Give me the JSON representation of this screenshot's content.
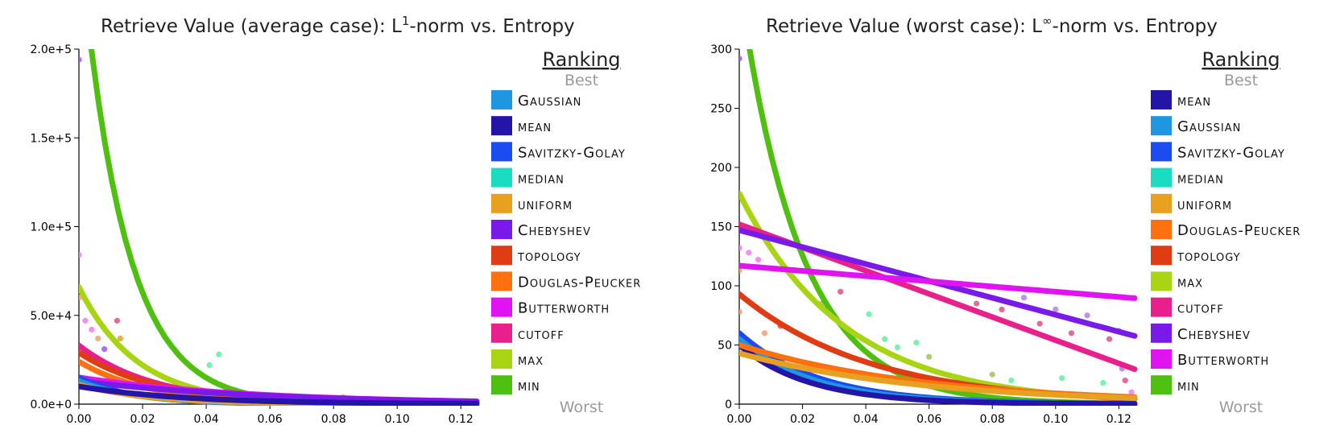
{
  "chart_data": [
    {
      "type": "line",
      "title_main": "Retrieve Value (average case): L",
      "title_sup": "1",
      "title_rest": "-norm vs. Entropy",
      "xlim": [
        0,
        0.125
      ],
      "ylim": [
        0,
        200000
      ],
      "xticks": [
        0,
        0.02,
        0.04,
        0.06,
        0.08,
        0.1,
        0.12
      ],
      "xtick_labels": [
        "0.00",
        "0.02",
        "0.04",
        "0.06",
        "0.08",
        "0.10",
        "0.12"
      ],
      "yticks": [
        0,
        50000,
        100000,
        150000,
        200000
      ],
      "ytick_labels": [
        "0.0e+0",
        "5.0e+4",
        "1.0e+5",
        "1.5e+5",
        "2.0e+5"
      ],
      "legend": {
        "title": "Ranking",
        "best_label": "Best",
        "worst_label": "Worst",
        "items": [
          {
            "label": "Gaussian",
            "color": "#1f96e0"
          },
          {
            "label": "mean",
            "color": "#2414a8"
          },
          {
            "label": "Savitzky-Golay",
            "color": "#1a4cf0"
          },
          {
            "label": "median",
            "color": "#1adcc0"
          },
          {
            "label": "uniform",
            "color": "#e8a020"
          },
          {
            "label": "Chebyshev",
            "color": "#7a1ae8"
          },
          {
            "label": "topology",
            "color": "#e03c14"
          },
          {
            "label": "Douglas-Peucker",
            "color": "#ff7010"
          },
          {
            "label": "Butterworth",
            "color": "#e014f0"
          },
          {
            "label": "cutoff",
            "color": "#e8208c"
          },
          {
            "label": "max",
            "color": "#a8d414"
          },
          {
            "label": "min",
            "color": "#50c010"
          }
        ]
      },
      "series": [
        {
          "name": "min",
          "color": "#50c010",
          "kind": "exp",
          "a": 265000,
          "k": 72,
          "xmin": 0.0,
          "xmax": 0.125
        },
        {
          "name": "max",
          "color": "#a8d414",
          "kind": "exp",
          "a": 66000,
          "k": 55,
          "xmin": 0.0,
          "xmax": 0.125
        },
        {
          "name": "cutoff",
          "color": "#e8208c",
          "kind": "exp",
          "a": 33000,
          "k": 42,
          "xmin": 0.0,
          "xmax": 0.125
        },
        {
          "name": "topology",
          "color": "#e03c14",
          "kind": "exp",
          "a": 29000,
          "k": 40,
          "xmin": 0.0,
          "xmax": 0.125
        },
        {
          "name": "Douglas-Peucker",
          "color": "#ff7010",
          "kind": "exp",
          "a": 24000,
          "k": 45,
          "xmin": 0.0,
          "xmax": 0.125
        },
        {
          "name": "Butterworth",
          "color": "#e014f0",
          "kind": "exp",
          "a": 15000,
          "k": 18,
          "xmin": 0.0,
          "xmax": 0.125
        },
        {
          "name": "Chebyshev",
          "color": "#7a1ae8",
          "kind": "exp",
          "a": 13000,
          "k": 17,
          "xmin": 0.0,
          "xmax": 0.125
        },
        {
          "name": "Savitzky-Golay",
          "color": "#1a4cf0",
          "kind": "exp",
          "a": 15000,
          "k": 60,
          "xmin": 0.0,
          "xmax": 0.125
        },
        {
          "name": "Gaussian",
          "color": "#1f96e0",
          "kind": "exp",
          "a": 13000,
          "k": 55,
          "xmin": 0.0,
          "xmax": 0.125
        },
        {
          "name": "uniform",
          "color": "#e8a020",
          "kind": "exp",
          "a": 11000,
          "k": 45,
          "xmin": 0.0,
          "xmax": 0.125
        },
        {
          "name": "mean",
          "color": "#2414a8",
          "kind": "exp",
          "a": 10000,
          "k": 30,
          "xmin": 0.0,
          "xmax": 0.125
        }
      ],
      "points": [
        {
          "x": 0.0,
          "y": 194000,
          "color": "#9b59f0"
        },
        {
          "x": 0.0,
          "y": 84000,
          "color": "#f07cf0"
        },
        {
          "x": 0.0,
          "y": 60000,
          "color": "#f0a070"
        },
        {
          "x": 0.002,
          "y": 47000,
          "color": "#f07cf0"
        },
        {
          "x": 0.004,
          "y": 42000,
          "color": "#f07cf0"
        },
        {
          "x": 0.006,
          "y": 37000,
          "color": "#f0a070"
        },
        {
          "x": 0.012,
          "y": 47000,
          "color": "#e05080"
        },
        {
          "x": 0.013,
          "y": 37000,
          "color": "#e8a020"
        },
        {
          "x": 0.008,
          "y": 31000,
          "color": "#9b59f0"
        },
        {
          "x": 0.044,
          "y": 28000,
          "color": "#60f0a0"
        },
        {
          "x": 0.041,
          "y": 22000,
          "color": "#60f0a0"
        },
        {
          "x": 0.083,
          "y": 4000,
          "color": "#f0a070"
        },
        {
          "x": 0.124,
          "y": 1000,
          "color": "#f07cf0"
        }
      ]
    },
    {
      "type": "line",
      "title_main": "Retrieve Value (worst case): L",
      "title_sup": "∞",
      "title_rest": "-norm vs. Entropy",
      "xlim": [
        0,
        0.125
      ],
      "ylim": [
        0,
        300
      ],
      "xticks": [
        0,
        0.02,
        0.04,
        0.06,
        0.08,
        0.1,
        0.12
      ],
      "xtick_labels": [
        "0.00",
        "0.02",
        "0.04",
        "0.06",
        "0.08",
        "0.10",
        "0.12"
      ],
      "yticks": [
        0,
        50,
        100,
        150,
        200,
        250,
        300
      ],
      "ytick_labels": [
        "0",
        "50",
        "100",
        "150",
        "200",
        "250",
        "300"
      ],
      "legend": {
        "title": "Ranking",
        "best_label": "Best",
        "worst_label": "Worst",
        "items": [
          {
            "label": "mean",
            "color": "#2414a8"
          },
          {
            "label": "Gaussian",
            "color": "#1f96e0"
          },
          {
            "label": "Savitzky-Golay",
            "color": "#1a4cf0"
          },
          {
            "label": "median",
            "color": "#1adcc0"
          },
          {
            "label": "uniform",
            "color": "#e8a020"
          },
          {
            "label": "Douglas-Peucker",
            "color": "#ff7010"
          },
          {
            "label": "topology",
            "color": "#e03c14"
          },
          {
            "label": "max",
            "color": "#a8d414"
          },
          {
            "label": "cutoff",
            "color": "#e8208c"
          },
          {
            "label": "Chebyshev",
            "color": "#7a1ae8"
          },
          {
            "label": "Butterworth",
            "color": "#e014f0"
          },
          {
            "label": "min",
            "color": "#50c010"
          }
        ]
      },
      "series": [
        {
          "name": "min",
          "color": "#50c010",
          "kind": "exp",
          "a": 355,
          "k": 52,
          "xmin": 0.0,
          "xmax": 0.125
        },
        {
          "name": "max",
          "color": "#a8d414",
          "kind": "exp",
          "a": 178,
          "k": 30,
          "xmin": 0.0,
          "xmax": 0.125
        },
        {
          "name": "cutoff",
          "color": "#e8208c",
          "kind": "lin",
          "a": 152,
          "b": -980,
          "xmin": 0.0,
          "xmax": 0.125
        },
        {
          "name": "Chebyshev",
          "color": "#7a1ae8",
          "kind": "lin",
          "a": 147,
          "b": -715,
          "xmin": 0.0,
          "xmax": 0.125
        },
        {
          "name": "Butterworth",
          "color": "#e014f0",
          "kind": "lin",
          "a": 117,
          "b": -220,
          "xmin": 0.0,
          "xmax": 0.125
        },
        {
          "name": "topology",
          "color": "#e03c14",
          "kind": "exp",
          "a": 93,
          "k": 24,
          "xmin": 0.0,
          "xmax": 0.125
        },
        {
          "name": "Savitzky-Golay",
          "color": "#1a4cf0",
          "kind": "exp",
          "a": 60,
          "k": 40,
          "xmin": 0.0,
          "xmax": 0.125
        },
        {
          "name": "Gaussian",
          "color": "#1f96e0",
          "kind": "exp",
          "a": 55,
          "k": 42,
          "xmin": 0.0,
          "xmax": 0.125
        },
        {
          "name": "mean",
          "color": "#2414a8",
          "kind": "exp",
          "a": 50,
          "k": 45,
          "xmin": 0.0,
          "xmax": 0.125
        },
        {
          "name": "Douglas-Peucker",
          "color": "#ff7010",
          "kind": "exp",
          "a": 50,
          "k": 17,
          "xmin": 0.0,
          "xmax": 0.125
        },
        {
          "name": "uniform",
          "color": "#e8a020",
          "kind": "exp",
          "a": 43,
          "k": 17,
          "xmin": 0.0,
          "xmax": 0.125
        }
      ],
      "points": [
        {
          "x": 0.0,
          "y": 292,
          "color": "#9b59f0"
        },
        {
          "x": 0.0,
          "y": 132,
          "color": "#f07cf0"
        },
        {
          "x": 0.003,
          "y": 128,
          "color": "#f07cf0"
        },
        {
          "x": 0.006,
          "y": 122,
          "color": "#f07cf0"
        },
        {
          "x": 0.0,
          "y": 113,
          "color": "#f0a070"
        },
        {
          "x": 0.0,
          "y": 92,
          "color": "#e05050"
        },
        {
          "x": 0.0,
          "y": 78,
          "color": "#f0a070"
        },
        {
          "x": 0.013,
          "y": 66,
          "color": "#e05050"
        },
        {
          "x": 0.008,
          "y": 60,
          "color": "#f0a070"
        },
        {
          "x": 0.032,
          "y": 95,
          "color": "#e05080"
        },
        {
          "x": 0.026,
          "y": 85,
          "color": "#a0c060"
        },
        {
          "x": 0.03,
          "y": 75,
          "color": "#a0c060"
        },
        {
          "x": 0.041,
          "y": 76,
          "color": "#60f0a0"
        },
        {
          "x": 0.046,
          "y": 55,
          "color": "#60f0a0"
        },
        {
          "x": 0.05,
          "y": 48,
          "color": "#60f0a0"
        },
        {
          "x": 0.056,
          "y": 52,
          "color": "#60f0a0"
        },
        {
          "x": 0.06,
          "y": 40,
          "color": "#a0c060"
        },
        {
          "x": 0.068,
          "y": 100,
          "color": "#e05080"
        },
        {
          "x": 0.075,
          "y": 85,
          "color": "#e05080"
        },
        {
          "x": 0.083,
          "y": 80,
          "color": "#e05080"
        },
        {
          "x": 0.09,
          "y": 90,
          "color": "#b080e0"
        },
        {
          "x": 0.095,
          "y": 68,
          "color": "#e05080"
        },
        {
          "x": 0.1,
          "y": 80,
          "color": "#b080e0"
        },
        {
          "x": 0.105,
          "y": 60,
          "color": "#e05080"
        },
        {
          "x": 0.11,
          "y": 75,
          "color": "#b080e0"
        },
        {
          "x": 0.117,
          "y": 55,
          "color": "#e05080"
        },
        {
          "x": 0.12,
          "y": 62,
          "color": "#b080e0"
        },
        {
          "x": 0.121,
          "y": 30,
          "color": "#b080e0"
        },
        {
          "x": 0.122,
          "y": 20,
          "color": "#e05080"
        },
        {
          "x": 0.086,
          "y": 20,
          "color": "#60f0a0"
        },
        {
          "x": 0.102,
          "y": 22,
          "color": "#60f0a0"
        },
        {
          "x": 0.115,
          "y": 18,
          "color": "#60f0a0"
        },
        {
          "x": 0.08,
          "y": 25,
          "color": "#a0c060"
        },
        {
          "x": 0.124,
          "y": 10,
          "color": "#f07cf0"
        }
      ]
    }
  ]
}
